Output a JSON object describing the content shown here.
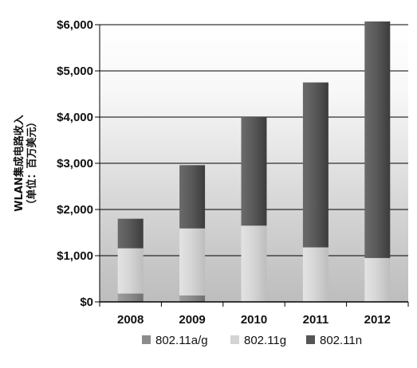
{
  "chart_data": {
    "type": "bar",
    "stacked": true,
    "title": "",
    "xlabel": "",
    "ylabel": "WLAN集成电路收入",
    "ylabel_sub": "（单位：百万美元）",
    "categories": [
      "2008",
      "2009",
      "2010",
      "2011",
      "2012"
    ],
    "ylim": [
      0,
      6000
    ],
    "yticks": [
      0,
      1000,
      2000,
      3000,
      4000,
      5000,
      6000
    ],
    "ytick_labels": [
      "$0",
      "$1,000",
      "$2,000",
      "$3,000",
      "$4,000",
      "$5,000",
      "$6,000"
    ],
    "grid": true,
    "legend_position": "bottom",
    "series": [
      {
        "name": "802.11a/g",
        "color": "#8c8c8c",
        "values": [
          180,
          140,
          0,
          0,
          0
        ]
      },
      {
        "name": "802.11g",
        "color": "#d4d4d4",
        "values": [
          980,
          1450,
          1650,
          1180,
          950
        ]
      },
      {
        "name": "802.11n",
        "color": "#555555",
        "values": [
          640,
          1370,
          2350,
          3570,
          5120
        ]
      }
    ]
  }
}
